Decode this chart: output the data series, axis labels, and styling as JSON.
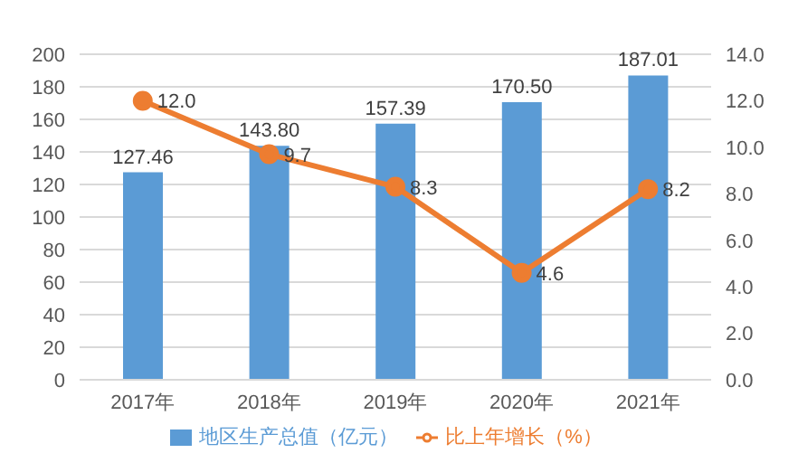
{
  "chart_data": {
    "type": "bar",
    "categories": [
      "2017年",
      "2018年",
      "2019年",
      "2020年",
      "2021年"
    ],
    "series": [
      {
        "name": "地区生产总值（亿元）",
        "color": "#5b9bd5",
        "values": [
          127.46,
          143.8,
          157.39,
          170.5,
          187.01
        ],
        "value_labels": [
          "127.46",
          "143.80",
          "157.39",
          "170.50",
          "187.01"
        ]
      },
      {
        "name": "比上年增长（%）",
        "type": "line",
        "axis": "y2",
        "color": "#ed7d31",
        "values": [
          12.0,
          9.7,
          8.3,
          4.6,
          8.2
        ],
        "value_labels": [
          "12.0",
          "9.7",
          "8.3",
          "4.6",
          "8.2"
        ]
      }
    ],
    "ylim": [
      0,
      200
    ],
    "yticks": [
      0,
      20,
      40,
      60,
      80,
      100,
      120,
      140,
      160,
      180,
      200
    ],
    "y2lim": [
      0,
      14
    ],
    "y2ticks": [
      {
        "value": 0,
        "label": "0.0"
      },
      {
        "value": 2,
        "label": "2.0"
      },
      {
        "value": 4,
        "label": "4.0"
      },
      {
        "value": 6,
        "label": "6.0"
      },
      {
        "value": 8,
        "label": "8.0"
      },
      {
        "value": 10,
        "label": "10.0"
      },
      {
        "value": 12,
        "label": "12.0"
      },
      {
        "value": 14,
        "label": "14.0"
      }
    ],
    "grid": "y",
    "legend": "bottom",
    "marker": "circle",
    "line_style": "solid"
  }
}
